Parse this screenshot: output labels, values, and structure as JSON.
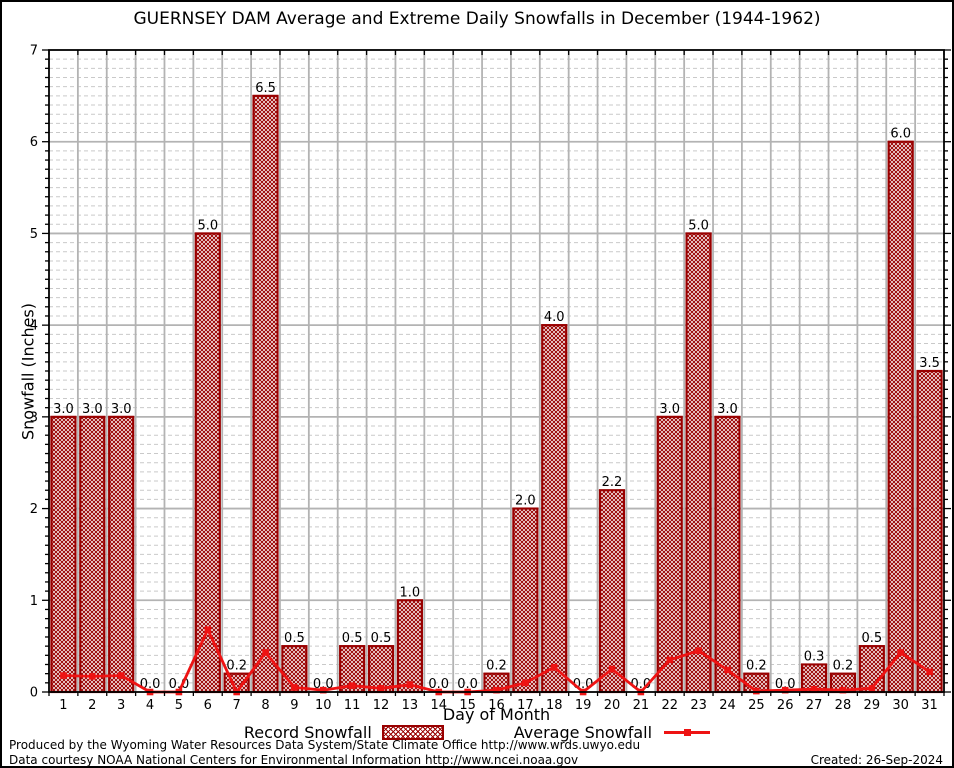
{
  "title": "GUERNSEY DAM Average and Extreme Daily Snowfalls in December (1944-1962)",
  "footer": {
    "credit_line1": "Produced by the Wyoming Water Resources Data System/State Climate Office http://www.wrds.uwyo.edu",
    "credit_line2": "Data courtesy NOAA National Centers for Environmental Information http://www.ncei.noaa.gov",
    "created": "Created: 26-Sep-2024"
  },
  "colors": {
    "bar": "#990000",
    "line": "#ee1313",
    "grid_major": "#b3b3b3",
    "grid_minor": "#c9c9c9",
    "frame": "#000000"
  },
  "chart_data": {
    "type": "bar",
    "title": "GUERNSEY DAM Average and Extreme Daily Snowfalls in December (1944-1962)",
    "xlabel": "Day of Month",
    "ylabel": "Snowfall (Inches)",
    "ylim": [
      0,
      7
    ],
    "y_major_step": 1,
    "y_minor_step": 0.1,
    "grid": true,
    "legend_position": "bottom",
    "categories": [
      1,
      2,
      3,
      4,
      5,
      6,
      7,
      8,
      9,
      10,
      11,
      12,
      13,
      14,
      15,
      16,
      17,
      18,
      19,
      20,
      21,
      22,
      23,
      24,
      25,
      26,
      27,
      28,
      29,
      30,
      31
    ],
    "series": [
      {
        "name": "Record Snowfall",
        "type": "bar",
        "values": [
          3.0,
          3.0,
          3.0,
          0.0,
          0.0,
          5.0,
          0.2,
          6.5,
          0.5,
          0.0,
          0.5,
          0.5,
          1.0,
          0.0,
          0.0,
          0.2,
          2.0,
          4.0,
          0.0,
          2.2,
          0.0,
          3.0,
          5.0,
          3.0,
          0.2,
          0.0,
          0.3,
          0.2,
          0.5,
          6.0,
          3.5
        ]
      },
      {
        "name": "Average Snowfall",
        "type": "line",
        "values": [
          0.18,
          0.17,
          0.18,
          0.0,
          0.0,
          0.68,
          0.0,
          0.43,
          0.05,
          0.02,
          0.07,
          0.04,
          0.08,
          0.0,
          0.0,
          0.02,
          0.1,
          0.27,
          0.0,
          0.25,
          0.0,
          0.35,
          0.45,
          0.24,
          0.01,
          0.02,
          0.03,
          0.02,
          0.04,
          0.43,
          0.22
        ]
      }
    ]
  }
}
